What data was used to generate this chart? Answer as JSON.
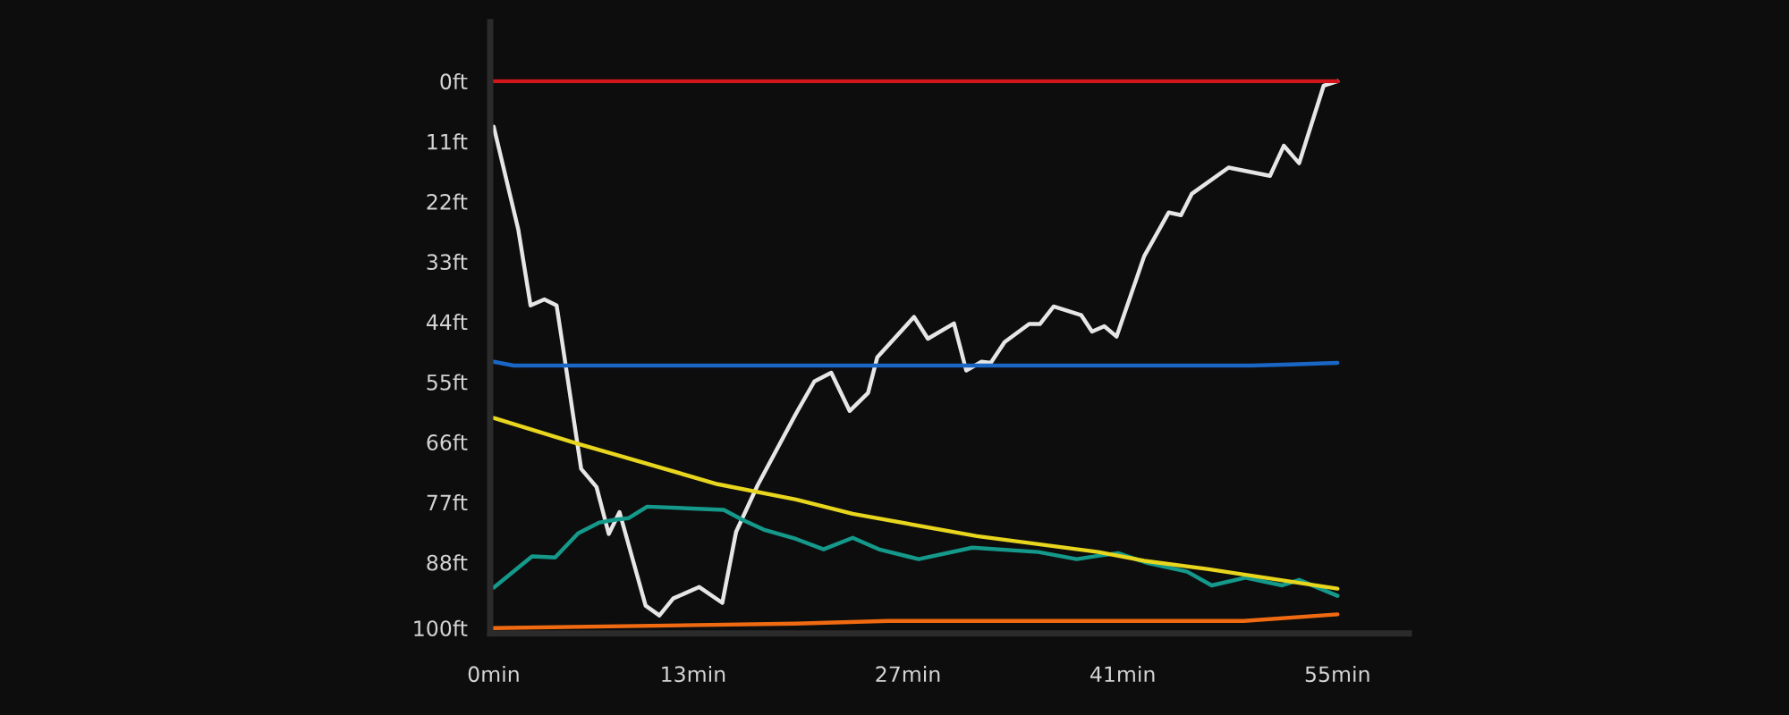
{
  "chart_data": {
    "type": "line",
    "xlim": [
      -0.23,
      59.65
    ],
    "ylim": [
      101.0,
      -10.8
    ],
    "xticks": [
      {
        "value": 0,
        "label": "0min"
      },
      {
        "value": 13,
        "label": "13min"
      },
      {
        "value": 27,
        "label": "27min"
      },
      {
        "value": 41,
        "label": "41min"
      },
      {
        "value": 55,
        "label": "55min"
      }
    ],
    "yticks": [
      {
        "value": 0,
        "label": "0ft"
      },
      {
        "value": 11,
        "label": "11ft"
      },
      {
        "value": 22,
        "label": "22ft"
      },
      {
        "value": 33,
        "label": "33ft"
      },
      {
        "value": 44,
        "label": "44ft"
      },
      {
        "value": 55,
        "label": "55ft"
      },
      {
        "value": 66,
        "label": "66ft"
      },
      {
        "value": 77,
        "label": "77ft"
      },
      {
        "value": 88,
        "label": "88ft"
      },
      {
        "value": 100,
        "label": "100ft"
      }
    ],
    "series": [
      {
        "color": "#e6e6e6",
        "x": [
          0,
          1.6,
          2.4,
          3.3,
          4.1,
          4.5,
          5.7,
          6.7,
          7.5,
          8.2,
          9.9,
          10.8,
          11.7,
          13.4,
          14.9,
          15.8,
          17.2,
          19.7,
          20.9,
          22.0,
          23.2,
          24.4,
          25.0,
          27.4,
          28.3,
          30.0,
          30.8,
          31.8,
          32.4,
          33.3,
          34.9,
          35.6,
          36.5,
          38.3,
          39.0,
          39.8,
          40.6,
          42.4,
          44.0,
          44.8,
          45.5,
          47.9,
          50.6,
          51.5,
          52.5,
          54.1,
          55
        ],
        "values": [
          8.3,
          27.1,
          41.0,
          39.9,
          41.0,
          48.4,
          70.9,
          74.2,
          82.8,
          78.8,
          95.9,
          97.7,
          94.6,
          92.5,
          95.4,
          82.4,
          73.9,
          60.8,
          54.9,
          53.3,
          60.3,
          57.0,
          50.5,
          43.1,
          47.1,
          44.3,
          52.9,
          51.3,
          51.5,
          47.7,
          44.4,
          44.4,
          41.2,
          42.8,
          45.8,
          44.8,
          46.7,
          32.0,
          24.0,
          24.5,
          20.6,
          15.8,
          17.3,
          11.8,
          15.0,
          0.8,
          0
        ]
      },
      {
        "color": "#14998a",
        "x": [
          0,
          2.5,
          4.0,
          5.5,
          6.9,
          7.9,
          8.8,
          10.0,
          15.0,
          16.2,
          17.6,
          19.7,
          21.5,
          23.4,
          25.1,
          27.7,
          31.2,
          35.5,
          38.0,
          39.4,
          40.7,
          42.6,
          45.2,
          46.8,
          49.0,
          51.4,
          52.5,
          55
        ],
        "values": [
          92.6,
          86.9,
          87.1,
          82.7,
          80.7,
          80.2,
          79.9,
          77.8,
          78.4,
          80.2,
          82.0,
          83.7,
          85.6,
          83.5,
          85.6,
          87.4,
          85.3,
          86.1,
          87.4,
          86.8,
          86.3,
          88.1,
          89.7,
          92.2,
          90.8,
          92.2,
          91.2,
          94.1
        ]
      },
      {
        "color": "#e8d61e",
        "x": [
          0,
          5.5,
          14.6,
          19.7,
          23.4,
          31.5,
          39.4,
          42.4,
          46.5,
          55
        ],
        "values": [
          61.6,
          66.3,
          73.7,
          76.5,
          79.1,
          83.2,
          86.1,
          87.7,
          89.2,
          92.8
        ]
      },
      {
        "color": "#1a66c4",
        "x": [
          0,
          1.3,
          49.4,
          52,
          55
        ],
        "values": [
          51.3,
          52.0,
          52.0,
          51.8,
          51.5
        ]
      },
      {
        "color": "#f06a12",
        "x": [
          0,
          19.7,
          25.7,
          48.9,
          55
        ],
        "values": [
          100.0,
          99.2,
          98.7,
          98.7,
          97.5
        ]
      },
      {
        "color": "#d2161c",
        "x": [
          0,
          55
        ],
        "values": [
          0,
          0
        ]
      }
    ]
  }
}
